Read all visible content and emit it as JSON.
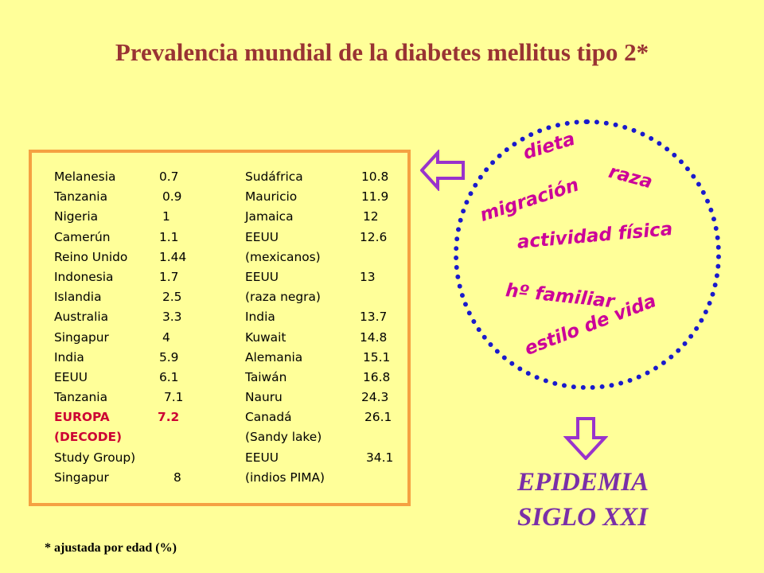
{
  "slide": {
    "title": "Prevalencia mundial de la diabetes mellitus tipo 2*",
    "footnote": "* ajustada por edad (%)"
  },
  "table": {
    "left": [
      {
        "name": "Melanesia",
        "value": "0.7",
        "vx": 132
      },
      {
        "name": "Tanzania",
        "value": "0.9",
        "vx": 136
      },
      {
        "name": "Nigeria",
        "value": "1",
        "vx": 136
      },
      {
        "name": "Camerún",
        "value": "1.1",
        "vx": 132
      },
      {
        "name": "Reino Unido",
        "value": "1.44",
        "vx": 132
      },
      {
        "name": "Indonesia",
        "value": "1.7",
        "vx": 132
      },
      {
        "name": "Islandia",
        "value": "2.5",
        "vx": 136
      },
      {
        "name": "Australia",
        "value": "3.3",
        "vx": 136
      },
      {
        "name": "Singapur",
        "value": "4",
        "vx": 136
      },
      {
        "name": "India",
        "value": "5.9",
        "vx": 132
      },
      {
        "name": "EEUU",
        "value": "6.1",
        "vx": 132
      },
      {
        "name": "Tanzania",
        "value": "7.1",
        "vx": 138
      },
      {
        "name": "EUROPA",
        "value": "7.2",
        "vx": 130,
        "highlight": true
      },
      {
        "name": "(DECODE)",
        "value": "",
        "vx": 0,
        "highlight": true
      },
      {
        "name": "Study Group)",
        "value": "",
        "vx": 0
      },
      {
        "name": "Singapur",
        "value": "8",
        "vx": 150
      }
    ],
    "right": [
      {
        "name": "Sudáfrica",
        "value": "10.8",
        "vx": 146
      },
      {
        "name": "Mauricio",
        "value": "11.9",
        "vx": 146
      },
      {
        "name": "Jamaica",
        "value": "12",
        "vx": 148
      },
      {
        "name": "EEUU",
        "value": "12.6",
        "vx": 144
      },
      {
        "name": "(mexicanos)",
        "value": "",
        "vx": 0
      },
      {
        "name": "EEUU",
        "value": "13",
        "vx": 144
      },
      {
        "name": "(raza negra)",
        "value": "",
        "vx": 0
      },
      {
        "name": "India",
        "value": "13.7",
        "vx": 144
      },
      {
        "name": "Kuwait",
        "value": "14.8",
        "vx": 144
      },
      {
        "name": "Alemania",
        "value": "15.1",
        "vx": 148
      },
      {
        "name": "Taiwán",
        "value": "16.8",
        "vx": 148
      },
      {
        "name": "Nauru",
        "value": "24.3",
        "vx": 146
      },
      {
        "name": "Canadá",
        "value": "26.1",
        "vx": 150
      },
      {
        "name": "(Sandy lake)",
        "value": "",
        "vx": 0
      },
      {
        "name": "EEUU",
        "value": "34.1",
        "vx": 152
      },
      {
        "name": "(indios PIMA)",
        "value": "",
        "vx": 0
      }
    ]
  },
  "factors": {
    "dieta": "dieta",
    "raza": "raza",
    "migracion": "migración",
    "actividad": "actividad física",
    "familiar": "hº familiar",
    "estilo": "estilo de vida"
  },
  "conclusion": {
    "line1": "EPIDEMIA",
    "line2": "SIGLO XXI"
  },
  "colors": {
    "background": "#ffff99",
    "title": "#993333",
    "table_border": "#f5a142",
    "highlight": "#cc0033",
    "factor_text": "#cc0099",
    "circle": "#1a1acc",
    "arrow": "#9933cc",
    "conclusion": "#7a2fa8"
  }
}
